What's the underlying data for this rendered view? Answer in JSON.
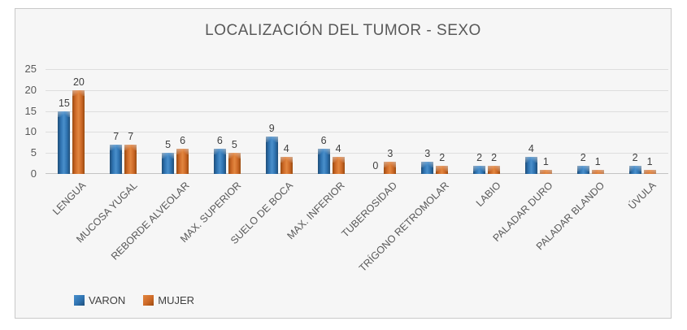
{
  "chart_data": {
    "type": "bar",
    "title": "LOCALIZACIÓN DEL TUMOR - SEXO",
    "categories": [
      "LENGUA",
      "MUCOSA YUGAL",
      "REBORDE ALVEOLAR",
      "MAX. SUPERIOR",
      "SUELO DE BOCA",
      "MAX. INFERIOR",
      "TUBEROSIDAD",
      "TRÍGONO RETROMOLAR",
      "LABIO",
      "PALADAR DURO",
      "PALADAR BLANDO",
      "ÚVULA"
    ],
    "series": [
      {
        "name": "VARON",
        "color": "#2F74B2",
        "color_light": "#4A8FCB",
        "color_dark": "#1F4E79",
        "values": [
          15,
          7,
          5,
          6,
          9,
          6,
          0,
          3,
          2,
          4,
          2,
          2
        ]
      },
      {
        "name": "MUJER",
        "color": "#CE6A28",
        "color_light": "#E28740",
        "color_dark": "#9C4B10",
        "values": [
          20,
          7,
          6,
          5,
          4,
          4,
          3,
          2,
          2,
          1,
          1,
          1
        ]
      }
    ],
    "ylim": [
      0,
      25
    ],
    "yticks": [
      0,
      5,
      10,
      15,
      20,
      25
    ],
    "grid": true,
    "data_labels": true,
    "legend_position": "bottom-left"
  },
  "colors": {
    "title_text": "#595959",
    "axis_text": "#595959",
    "value_label_text": "#3F3F3F",
    "category_text": "#595959",
    "gridline": "#DEDEDE",
    "axis_line": "#C4C4C4",
    "chart_border": "#C9C9C9",
    "chart_background": "#F6F6F6",
    "page_background": "#FFFFFF"
  }
}
